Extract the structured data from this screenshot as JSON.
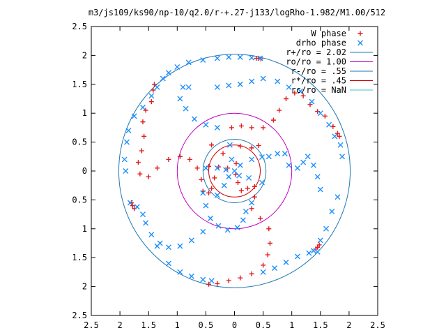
{
  "chart_data": {
    "type": "scatter",
    "title": "m3/js109/ks90/np-10/q2.0/r-+.27-j133/logRho-1.982/M1.00/512",
    "xlim": [
      -2.5,
      2.5
    ],
    "ylim": [
      -2.5,
      2.5
    ],
    "x_ticks": [
      -2.5,
      -2,
      -1.5,
      -1,
      -0.5,
      0,
      0.5,
      1,
      1.5,
      2,
      2.5
    ],
    "y_ticks": [
      -2.5,
      -2,
      -1.5,
      -1,
      -0.5,
      0,
      0.5,
      1,
      1.5,
      2,
      2.5
    ],
    "x_tick_labels": [
      "2.5",
      "2",
      "1.5",
      "1",
      "0.5",
      "0",
      "0.5",
      "1",
      "1.5",
      "2",
      "2.5"
    ],
    "y_tick_labels": [
      "2.5",
      "2",
      "1.5",
      "1",
      "0.5",
      "0",
      "0.5",
      "1",
      "1.5",
      "2",
      "2.5"
    ],
    "grid": false,
    "legend_position": "top-right",
    "legend": [
      {
        "label": "W phase",
        "kind": "marker",
        "marker": "+",
        "color": "#e41a1c"
      },
      {
        "label": "drho phase",
        "kind": "marker",
        "marker": "x",
        "color": "#1e90ff"
      },
      {
        "label": "r+/ro = 2.02",
        "kind": "line",
        "color": "#1f77b4"
      },
      {
        "label": "ro/ro = 1.00",
        "kind": "line",
        "color": "#c000c0"
      },
      {
        "label": "r-/ro = .55",
        "kind": "line",
        "color": "#1f77b4"
      },
      {
        "label": "r*/ro = .45",
        "kind": "line",
        "color": "#cc0000"
      },
      {
        "label": "rc/ro = NaN",
        "kind": "line",
        "color": "#40c0c0"
      }
    ],
    "circles": [
      {
        "radius": 2.02,
        "color": "#1f77b4"
      },
      {
        "radius": 1.0,
        "color": "#c000c0"
      },
      {
        "radius": 0.55,
        "color": "#1f77b4"
      },
      {
        "radius": 0.45,
        "color": "#cc0000"
      }
    ],
    "series": [
      {
        "name": "W phase",
        "color": "#e41a1c",
        "marker": "+",
        "points": [
          [
            0.03,
            0.13
          ],
          [
            -0.2,
            0.3
          ],
          [
            -0.4,
            0.45
          ],
          [
            0.1,
            0.43
          ],
          [
            0.3,
            0.4
          ],
          [
            0.42,
            0.44
          ],
          [
            -0.45,
            0.08
          ],
          [
            -0.28,
            0.07
          ],
          [
            -0.12,
            0.05
          ],
          [
            0.02,
            -0.06
          ],
          [
            0.06,
            -0.2
          ],
          [
            0.12,
            -0.34
          ],
          [
            0.23,
            -0.3
          ],
          [
            0.35,
            -0.27
          ],
          [
            -0.35,
            -0.12
          ],
          [
            -0.4,
            -0.3
          ],
          [
            -0.45,
            -0.38
          ],
          [
            -0.55,
            -0.35
          ],
          [
            -0.58,
            -0.15
          ],
          [
            -0.65,
            0.05
          ],
          [
            -0.78,
            0.2
          ],
          [
            -0.95,
            0.25
          ],
          [
            -1.15,
            0.2
          ],
          [
            -1.35,
            0.05
          ],
          [
            -1.5,
            -0.1
          ],
          [
            -1.65,
            -0.05
          ],
          [
            -1.68,
            0.15
          ],
          [
            -1.62,
            0.35
          ],
          [
            -1.58,
            0.6
          ],
          [
            -1.6,
            0.85
          ],
          [
            -1.55,
            1.05
          ],
          [
            -1.45,
            1.2
          ],
          [
            -1.42,
            1.4
          ],
          [
            -1.4,
            1.5
          ],
          [
            -0.05,
            0.75
          ],
          [
            0.12,
            0.78
          ],
          [
            0.3,
            0.75
          ],
          [
            0.5,
            0.75
          ],
          [
            0.68,
            0.88
          ],
          [
            0.78,
            1.05
          ],
          [
            0.9,
            1.25
          ],
          [
            1.05,
            1.35
          ],
          [
            1.2,
            1.3
          ],
          [
            1.32,
            1.15
          ],
          [
            1.45,
            1.03
          ],
          [
            1.58,
            0.95
          ],
          [
            1.72,
            0.77
          ],
          [
            1.8,
            0.65
          ],
          [
            1.83,
            0.6
          ],
          [
            0.35,
            -0.45
          ],
          [
            0.3,
            -0.65
          ],
          [
            0.45,
            -0.82
          ],
          [
            0.6,
            -1.0
          ],
          [
            0.62,
            -1.25
          ],
          [
            0.58,
            -1.45
          ],
          [
            0.5,
            -1.63
          ],
          [
            0.3,
            -1.78
          ],
          [
            0.1,
            -1.85
          ],
          [
            -0.1,
            -1.9
          ],
          [
            -0.3,
            -1.95
          ],
          [
            -0.45,
            -1.96
          ],
          [
            -1.8,
            -0.55
          ],
          [
            -1.78,
            -0.6
          ],
          [
            -1.75,
            -0.65
          ],
          [
            1.42,
            -1.35
          ],
          [
            1.45,
            -1.32
          ],
          [
            1.48,
            -1.28
          ],
          [
            0.38,
            1.95
          ],
          [
            0.42,
            1.95
          ],
          [
            0.46,
            1.94
          ]
        ]
      },
      {
        "name": "drho phase",
        "color": "#1e90ff",
        "marker": "x",
        "points": [
          [
            0.0,
            0.0
          ],
          [
            -0.05,
            0.2
          ],
          [
            -0.08,
            0.45
          ],
          [
            0.1,
            0.1
          ],
          [
            0.3,
            0.2
          ],
          [
            0.48,
            0.24
          ],
          [
            0.08,
            -0.08
          ],
          [
            0.25,
            -0.12
          ],
          [
            0.48,
            -0.2
          ],
          [
            -0.1,
            -0.1
          ],
          [
            -0.18,
            -0.25
          ],
          [
            -0.3,
            -0.42
          ],
          [
            -0.15,
            0.02
          ],
          [
            -0.3,
            0.05
          ],
          [
            -0.5,
            0.05
          ],
          [
            -0.55,
            -0.38
          ],
          [
            -0.5,
            -0.6
          ],
          [
            -0.42,
            -0.82
          ],
          [
            -0.28,
            -0.95
          ],
          [
            -0.12,
            -1.02
          ],
          [
            0.05,
            -0.98
          ],
          [
            0.15,
            -0.85
          ],
          [
            0.2,
            -0.7
          ],
          [
            0.3,
            -0.55
          ],
          [
            -0.3,
            0.75
          ],
          [
            -0.5,
            0.8
          ],
          [
            -0.7,
            0.9
          ],
          [
            -0.85,
            1.08
          ],
          [
            -0.95,
            1.25
          ],
          [
            -0.9,
            1.45
          ],
          [
            -0.8,
            1.45
          ],
          [
            0.6,
            0.25
          ],
          [
            0.75,
            0.3
          ],
          [
            0.88,
            0.3
          ],
          [
            0.95,
            0.1
          ],
          [
            1.1,
            0.05
          ],
          [
            1.2,
            0.15
          ],
          [
            1.28,
            0.25
          ],
          [
            1.38,
            0.1
          ],
          [
            1.45,
            -0.1
          ],
          [
            1.5,
            -0.32
          ],
          [
            -0.3,
            1.45
          ],
          [
            -0.1,
            1.48
          ],
          [
            0.1,
            1.5
          ],
          [
            0.3,
            1.55
          ],
          [
            0.5,
            1.6
          ],
          [
            0.75,
            1.55
          ],
          [
            0.95,
            1.45
          ],
          [
            1.15,
            1.38
          ],
          [
            1.35,
            1.2
          ],
          [
            1.5,
            1.0
          ],
          [
            1.65,
            0.8
          ],
          [
            1.75,
            0.6
          ],
          [
            1.85,
            0.45
          ],
          [
            1.88,
            0.25
          ],
          [
            1.8,
            -0.45
          ],
          [
            1.7,
            -0.7
          ],
          [
            1.6,
            -1.0
          ],
          [
            1.5,
            -1.2
          ],
          [
            1.45,
            -1.4
          ],
          [
            -0.55,
            -1.05
          ],
          [
            -0.75,
            -1.2
          ],
          [
            -0.95,
            -1.3
          ],
          [
            -1.15,
            -1.32
          ],
          [
            -1.3,
            -1.25
          ],
          [
            -1.45,
            -1.1
          ],
          [
            -1.55,
            -0.9
          ],
          [
            -1.6,
            -0.75
          ],
          [
            -1.7,
            -0.62
          ],
          [
            -1.82,
            -0.55
          ],
          [
            -1.9,
            0.0
          ],
          [
            -1.92,
            0.2
          ],
          [
            -1.88,
            0.5
          ],
          [
            -1.85,
            0.7
          ],
          [
            -1.75,
            0.95
          ],
          [
            -1.6,
            1.1
          ],
          [
            -1.45,
            1.3
          ],
          [
            -1.35,
            1.45
          ],
          [
            -1.25,
            1.6
          ],
          [
            -1.15,
            1.7
          ],
          [
            -1.0,
            1.8
          ],
          [
            -0.8,
            1.88
          ],
          [
            -0.55,
            1.92
          ],
          [
            -0.3,
            1.95
          ],
          [
            -0.1,
            1.97
          ],
          [
            0.1,
            1.97
          ],
          [
            0.3,
            1.96
          ],
          [
            0.45,
            1.95
          ],
          [
            -1.35,
            -1.3
          ],
          [
            -1.15,
            -1.6
          ],
          [
            -0.95,
            -1.75
          ],
          [
            -0.75,
            -1.82
          ],
          [
            -0.55,
            -1.88
          ],
          [
            -0.4,
            -1.9
          ],
          [
            0.5,
            -1.75
          ],
          [
            0.7,
            -1.68
          ],
          [
            0.9,
            -1.58
          ],
          [
            1.1,
            -1.48
          ],
          [
            1.3,
            -1.42
          ],
          [
            1.38,
            -1.38
          ]
        ]
      }
    ]
  }
}
